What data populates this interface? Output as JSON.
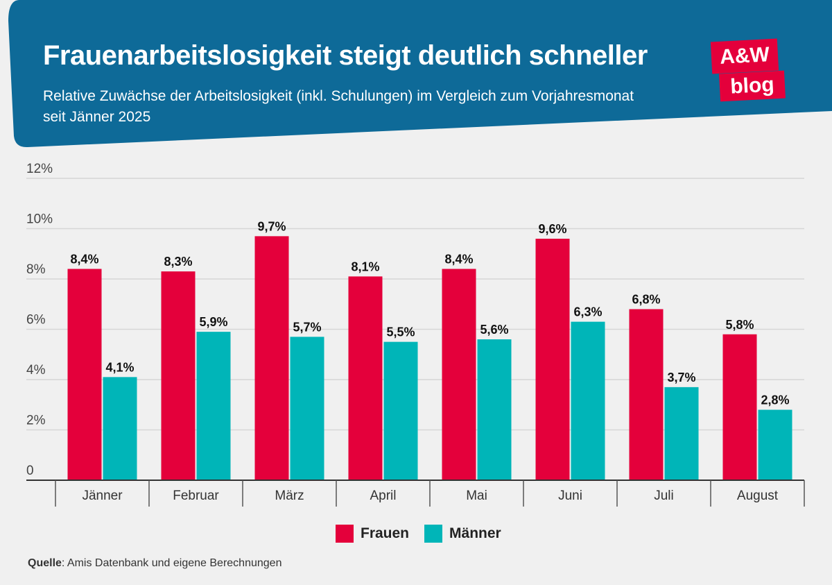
{
  "header": {
    "title": "Frauenarbeitslosigkeit steigt deutlich schneller",
    "subtitle": "Relative Zuwächse der Arbeitslosigkeit (inkl. Schulungen) im Vergleich zum Vorjahresmonat seit Jänner 2025",
    "band_color": "#0e6a98"
  },
  "logo": {
    "line1": "A&W",
    "line2": "blog",
    "color": "#e4003b"
  },
  "chart_data": {
    "type": "bar",
    "title": "Frauenarbeitslosigkeit steigt deutlich schneller",
    "categories": [
      "Jänner",
      "Februar",
      "März",
      "April",
      "Mai",
      "Juni",
      "Juli",
      "August"
    ],
    "series": [
      {
        "name": "Frauen",
        "color": "#e4003b",
        "values": [
          8.4,
          8.3,
          9.7,
          8.1,
          8.4,
          9.6,
          6.8,
          5.8
        ],
        "labels": [
          "8,4%",
          "8,3%",
          "9,7%",
          "8,1%",
          "8,4%",
          "9,6%",
          "6,8%",
          "5,8%"
        ]
      },
      {
        "name": "Männer",
        "color": "#00b5b8",
        "values": [
          4.1,
          5.9,
          5.7,
          5.5,
          5.6,
          6.3,
          3.7,
          2.8
        ],
        "labels": [
          "4,1%",
          "5,9%",
          "5,7%",
          "5,5%",
          "5,6%",
          "6,3%",
          "3,7%",
          "2,8%"
        ]
      }
    ],
    "ylim": [
      0,
      12
    ],
    "yticks": [
      0,
      2,
      4,
      6,
      8,
      10,
      12
    ],
    "ytick_labels": [
      "0",
      "2%",
      "4%",
      "6%",
      "8%",
      "10%",
      "12%"
    ],
    "xlabel": "",
    "ylabel": "",
    "grid": true,
    "legend_position": "bottom-center"
  },
  "legend": {
    "frauen": "Frauen",
    "maenner": "Männer"
  },
  "source": {
    "label": "Quelle",
    "text": ": Amis Datenbank und eigene Berechnungen"
  }
}
